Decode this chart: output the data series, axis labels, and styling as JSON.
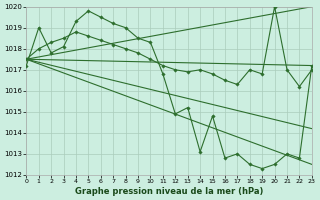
{
  "title": "Graphe pression niveau de la mer (hPa)",
  "bg_color": "#cceee0",
  "grid_color": "#aaccbb",
  "line_color": "#2d6e2d",
  "ylim": [
    1012,
    1020
  ],
  "xlim": [
    0,
    23
  ],
  "yticks": [
    1012,
    1013,
    1014,
    1015,
    1016,
    1017,
    1018,
    1019,
    1020
  ],
  "xticks": [
    0,
    1,
    2,
    3,
    4,
    5,
    6,
    7,
    8,
    9,
    10,
    11,
    12,
    13,
    14,
    15,
    16,
    17,
    18,
    19,
    20,
    21,
    22,
    23
  ],
  "main_series": [
    1017.2,
    1019.0,
    1017.8,
    1018.1,
    1019.3,
    1019.8,
    1019.5,
    1019.2,
    1019.0,
    1018.5,
    1018.3,
    1016.8,
    1014.9,
    1015.2,
    1013.1,
    1014.8,
    1012.8,
    1013.0,
    1012.5,
    1012.3,
    1012.5,
    1013.0,
    1012.8,
    1017.2
  ],
  "trend_lines": [
    {
      "x0": 0,
      "y0": 1017.5,
      "x1": 23,
      "y1": 1020.0
    },
    {
      "x0": 0,
      "y0": 1017.5,
      "x1": 23,
      "y1": 1017.2
    },
    {
      "x0": 0,
      "y0": 1017.5,
      "x1": 23,
      "y1": 1014.2
    },
    {
      "x0": 0,
      "y0": 1017.5,
      "x1": 23,
      "y1": 1012.5
    }
  ],
  "extra_series": [
    [
      1017.5,
      1018.0,
      1018.3,
      1018.5,
      1018.8,
      1018.6,
      1018.4,
      1018.2,
      1018.0,
      1017.8,
      1017.5,
      1017.2,
      1017.0,
      1016.9,
      1017.0,
      1016.8,
      1016.5,
      1016.3,
      1017.0,
      1016.8,
      1020.0,
      1017.0,
      1016.2,
      1017.0
    ]
  ]
}
